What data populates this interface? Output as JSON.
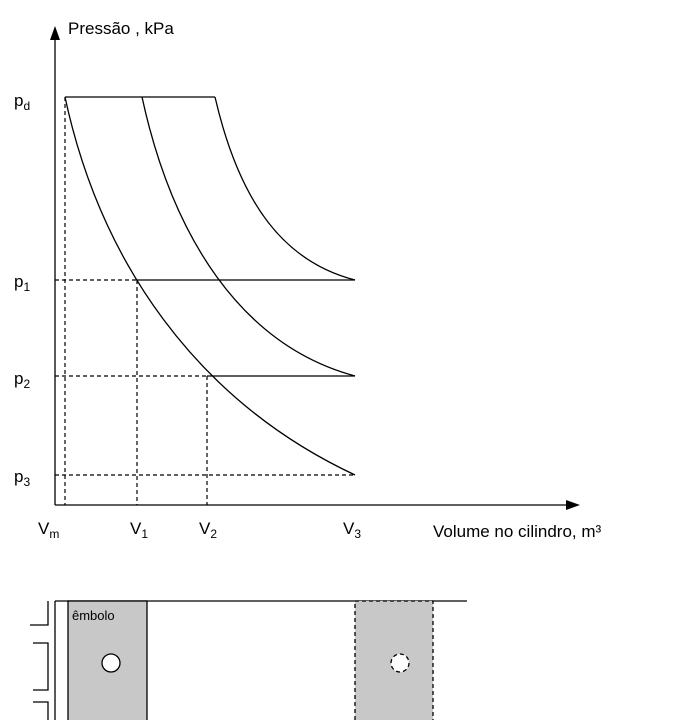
{
  "axes": {
    "y_label": "Pressão , kPa",
    "x_label": "Volume no cilindro, m³"
  },
  "pressure_levels": [
    {
      "symbol": "p",
      "sub": "d"
    },
    {
      "symbol": "p",
      "sub": "1"
    },
    {
      "symbol": "p",
      "sub": "2"
    },
    {
      "symbol": "p",
      "sub": "3"
    }
  ],
  "volume_levels": [
    {
      "symbol": "V",
      "sub": "m"
    },
    {
      "symbol": "V",
      "sub": "1"
    },
    {
      "symbol": "V",
      "sub": "2"
    },
    {
      "symbol": "V",
      "sub": "3"
    }
  ],
  "piston_label": "êmbolo"
}
